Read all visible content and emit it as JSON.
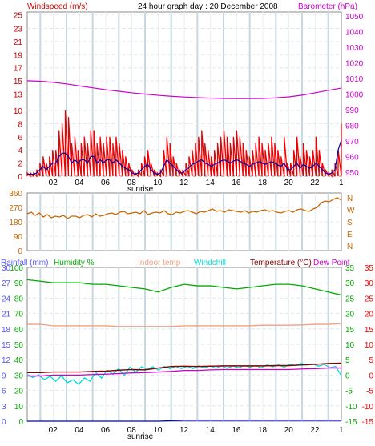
{
  "header": {
    "wind_title": "Windspeed (m/s)",
    "graph_title": "24 hour graph day : 20 December 2008",
    "baro_title": "Barometer (hPa)",
    "sunrise": "sunrise"
  },
  "rain_header": {
    "rainfall": "Rainfall (mm)",
    "humidity": "Humidity %",
    "indoor": "Indoor temp",
    "windchill": "Windchill",
    "temperature": "Temperature (°C)",
    "dewpoint": "Dew Point"
  },
  "colors": {
    "wind_title": "#cc0000",
    "baro": "#cc00cc",
    "rain": "#5555ff",
    "humidity": "#00aa00",
    "indoor": "#f0a080",
    "windchill": "#00dddd",
    "temperature": "#880000",
    "dewpoint": "#cc00cc",
    "temp_axis": "#ff0000",
    "direction": "#cc6600",
    "grid": "#aaccdd"
  },
  "chart_data": [
    {
      "type": "line",
      "name": "wind_pressure",
      "x": [
        0,
        1,
        2,
        3,
        4,
        5,
        6,
        7,
        8,
        9,
        10,
        11,
        12,
        13,
        14,
        15,
        16,
        17,
        18,
        19,
        20,
        21,
        22,
        23,
        24
      ],
      "xticks": [
        "02",
        "04",
        "06",
        "08",
        "10",
        "12",
        "14",
        "16",
        "18",
        "20",
        "22",
        "1"
      ],
      "y_left_ticks": [
        "0",
        "2",
        "4",
        "6",
        "8",
        "10",
        "13",
        "15",
        "17",
        "19",
        "21",
        "23",
        "25"
      ],
      "y_right_ticks": [
        "950",
        "960",
        "970",
        "980",
        "990",
        "1000",
        "1010",
        "1020",
        "1030",
        "1040",
        "1050"
      ],
      "y_left_range": [
        0,
        25
      ],
      "y_right_range": [
        947.5,
        1052.5
      ],
      "gust": [
        0.5,
        0.5,
        0.5,
        1,
        2,
        3,
        2,
        3,
        4,
        4,
        7,
        8,
        10,
        9,
        5,
        6,
        4,
        5,
        6,
        5,
        7,
        7,
        5,
        6,
        5,
        6,
        6,
        5,
        6,
        5,
        4,
        3,
        2,
        1,
        0.5,
        1,
        2,
        3,
        4,
        2,
        1,
        0.5,
        1,
        4,
        6,
        5,
        3,
        2,
        1,
        1,
        2,
        3,
        4,
        5,
        6,
        7,
        5,
        4,
        3,
        4,
        5,
        6,
        7,
        6,
        5,
        6,
        7,
        6,
        5,
        4,
        3,
        4,
        5,
        6,
        5,
        4,
        5,
        6,
        5,
        4,
        3,
        6,
        2,
        2,
        4,
        6,
        3,
        5,
        4,
        3,
        4,
        6,
        4,
        2,
        1,
        0.5,
        1,
        2,
        4,
        8
      ],
      "avg": [
        0.3,
        0.3,
        0.3,
        0.5,
        1,
        1.5,
        1,
        1.5,
        2,
        2,
        3,
        3.5,
        3.5,
        3,
        2,
        2.5,
        2,
        2.5,
        2.5,
        2,
        3,
        3,
        2,
        2.5,
        2,
        2.5,
        2.5,
        2,
        2.5,
        2,
        1.5,
        1.2,
        1,
        0.5,
        0.3,
        0.5,
        1,
        1.5,
        1.8,
        1,
        0.5,
        0.3,
        0.5,
        1.5,
        2.5,
        2,
        1.5,
        1,
        0.5,
        0.5,
        1,
        1.3,
        1.8,
        2,
        2.3,
        2.5,
        2,
        1.8,
        1.5,
        1.8,
        2,
        2.3,
        2.5,
        2.3,
        2,
        2.3,
        2.5,
        2.3,
        2,
        1.8,
        1.5,
        1.8,
        2,
        2.2,
        2,
        1.8,
        2,
        2.2,
        2,
        1.7,
        1.5,
        2,
        1,
        1,
        1.5,
        2,
        1.2,
        1.8,
        1.5,
        1.2,
        1.5,
        2,
        1.5,
        1,
        0.5,
        0.3,
        0.5,
        1,
        4,
        5.5
      ],
      "pressure": [
        1008.5,
        1008.2,
        1007.5,
        1006.5,
        1005.2,
        1004,
        1002.8,
        1001.8,
        1000.8,
        1000,
        999.2,
        998.6,
        998.1,
        997.7,
        997.4,
        997.2,
        997.1,
        997.1,
        997.2,
        997.6,
        998.2,
        999.3,
        1000.8,
        1002.4,
        1003.8
      ]
    },
    {
      "type": "line",
      "name": "wind_direction",
      "y_ticks": [
        "360",
        "270",
        "180",
        "90",
        "0"
      ],
      "y_right_labels": [
        "N",
        "W",
        "S",
        "E",
        "N"
      ],
      "y_range": [
        0,
        360
      ],
      "values": [
        230,
        240,
        220,
        235,
        210,
        225,
        205,
        215,
        210,
        220,
        200,
        215,
        215,
        205,
        220,
        225,
        210,
        230,
        215,
        220,
        230,
        235,
        225,
        240,
        245,
        230,
        235,
        240,
        230,
        250,
        225,
        235,
        240,
        235,
        250,
        230,
        225,
        240,
        235,
        245,
        250,
        240,
        230,
        245,
        240,
        250,
        260,
        245,
        250,
        240,
        255,
        250,
        245,
        240,
        250,
        235,
        245,
        240,
        250,
        255,
        245,
        250,
        240,
        235,
        245,
        250,
        240,
        255,
        260,
        250,
        245,
        260,
        270,
        300,
        310,
        305,
        320,
        330,
        315
      ]
    },
    {
      "type": "line",
      "name": "temp_humidity_rain",
      "left_outer_ticks": [
        "0",
        "3",
        "6",
        "9",
        "12",
        "15",
        "18",
        "21",
        "24",
        "27",
        "30"
      ],
      "left_inner_ticks": [
        "0",
        "10",
        "20",
        "30",
        "40",
        "50",
        "60",
        "70",
        "80",
        "90",
        "100"
      ],
      "right_outer_ticks": [
        "-15",
        "-10",
        "-5",
        "0",
        "5",
        "10",
        "15",
        "20",
        "25",
        "30",
        "35"
      ],
      "right_inner_ticks": [
        "-15",
        "-10",
        "-5",
        "0",
        "5",
        "10",
        "15",
        "20",
        "25",
        "30",
        "35"
      ],
      "humidity_range": [
        0,
        100
      ],
      "temp_range": [
        -15,
        35
      ],
      "humidity": [
        92,
        91,
        90,
        90,
        90,
        89,
        89,
        88,
        87,
        86,
        84,
        87,
        89,
        88,
        88,
        87,
        86,
        87,
        88,
        89,
        89,
        88,
        86,
        84,
        82
      ],
      "indoor": [
        16.5,
        16.5,
        16,
        16,
        16,
        16,
        16,
        15.8,
        15.8,
        15.8,
        15.8,
        15.8,
        16,
        16,
        16,
        16,
        16,
        16,
        16.2,
        16.2,
        16.2,
        16.3,
        16.5,
        16.5,
        16.7
      ],
      "temperature": [
        0.8,
        0.8,
        1,
        1,
        1,
        1.2,
        1.3,
        1.6,
        1.8,
        1.7,
        2.3,
        2.8,
        2.9,
        2.8,
        2.9,
        3,
        3,
        3,
        3,
        3.1,
        3.1,
        3.3,
        3.5,
        3.8,
        3.9
      ],
      "dewpoint": [
        -0.3,
        -0.3,
        0,
        0,
        0,
        0.2,
        0.3,
        0.5,
        0.7,
        0.8,
        1,
        1.2,
        1.5,
        1.5,
        1.7,
        1.8,
        1.8,
        1.8,
        1.8,
        1.8,
        1.8,
        2,
        2.1,
        2.3,
        2.3
      ],
      "windchill": [
        0.2,
        -0.8,
        0.1,
        -1.5,
        -0.4,
        -2,
        -0.2,
        -2.5,
        -1.5,
        -3,
        -0.9,
        -2,
        0.9,
        -1,
        1.6,
        0.3,
        2.1,
        -0.1,
        2.6,
        0.9,
        2.7,
        1.8,
        2.7,
        1.6,
        2.8,
        2.1,
        2.9,
        2.1,
        2.9,
        2.1,
        3,
        2.4,
        3,
        2.2,
        3,
        2.2,
        3,
        2.4,
        3.1,
        2.6,
        3.1,
        2.4,
        3.3,
        2.7,
        3.3,
        2.6,
        3.5,
        3.1,
        3.8,
        3.3,
        3.7,
        2.9,
        3.5,
        2.4,
        2.8,
        -0.2
      ],
      "rain": [
        0,
        0,
        0,
        0,
        0,
        0,
        0,
        0,
        0,
        0,
        0,
        0.1,
        0.2,
        0.2,
        0.2,
        0.2,
        0.2,
        0.2,
        0.2,
        0.2,
        0.2,
        0.2,
        0.2,
        0.2,
        0.2
      ]
    }
  ]
}
